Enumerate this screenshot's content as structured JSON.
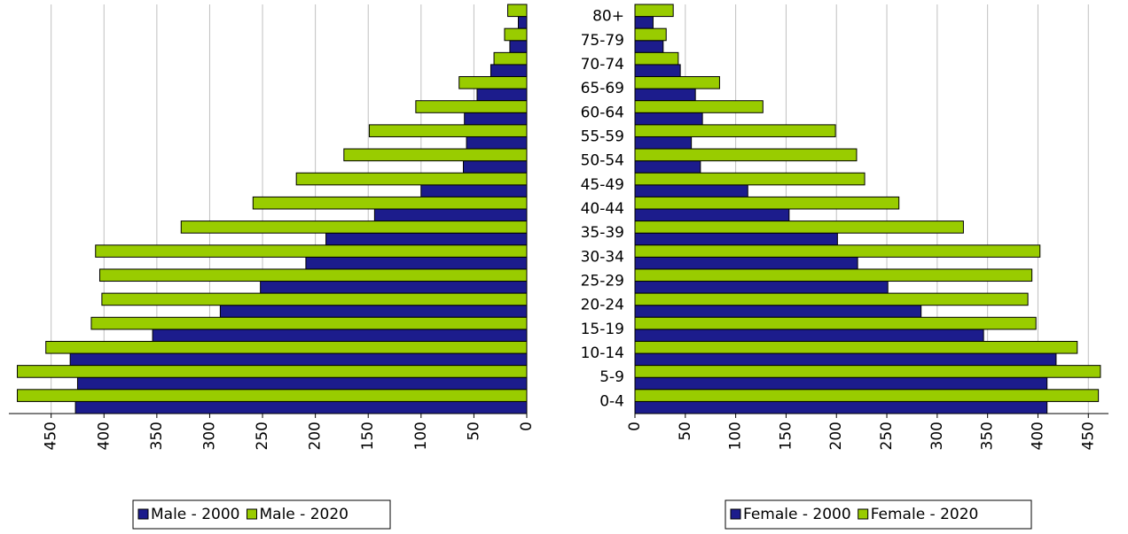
{
  "chart_data": [
    {
      "type": "bar",
      "orientation": "horizontal",
      "x_reversed": true,
      "xlim": [
        0,
        490
      ],
      "xticks": [
        0,
        50,
        100,
        150,
        200,
        250,
        300,
        350,
        400,
        450
      ],
      "grid": true,
      "series": [
        {
          "name": "Male - 2000",
          "color": "#1c1c8c",
          "values": [
            427,
            425,
            432,
            354,
            290,
            252,
            209,
            190,
            144,
            100,
            60,
            57,
            59,
            47,
            34,
            16,
            8
          ]
        },
        {
          "name": "Male - 2020",
          "color": "#99cc00",
          "values": [
            482,
            482,
            455,
            412,
            402,
            404,
            408,
            327,
            259,
            218,
            173,
            149,
            105,
            64,
            31,
            21,
            18
          ]
        }
      ]
    },
    {
      "type": "bar",
      "orientation": "horizontal",
      "x_reversed": false,
      "categories": [
        "0-4",
        "5-9",
        "10-14",
        "15-19",
        "20-24",
        "25-29",
        "30-34",
        "35-39",
        "40-44",
        "45-49",
        "50-54",
        "55-59",
        "60-64",
        "65-69",
        "70-74",
        "75-79",
        "80+"
      ],
      "xlim": [
        0,
        470
      ],
      "xticks": [
        0,
        50,
        100,
        150,
        200,
        250,
        300,
        350,
        400,
        450
      ],
      "grid": true,
      "series": [
        {
          "name": "Female - 2000",
          "color": "#1c1c8c",
          "values": [
            409,
            409,
            418,
            346,
            284,
            251,
            221,
            201,
            153,
            112,
            65,
            56,
            67,
            60,
            45,
            28,
            18
          ]
        },
        {
          "name": "Female - 2020",
          "color": "#99cc00",
          "values": [
            460,
            462,
            439,
            398,
            390,
            394,
            402,
            326,
            262,
            228,
            220,
            199,
            127,
            84,
            43,
            31,
            38
          ]
        }
      ]
    }
  ]
}
